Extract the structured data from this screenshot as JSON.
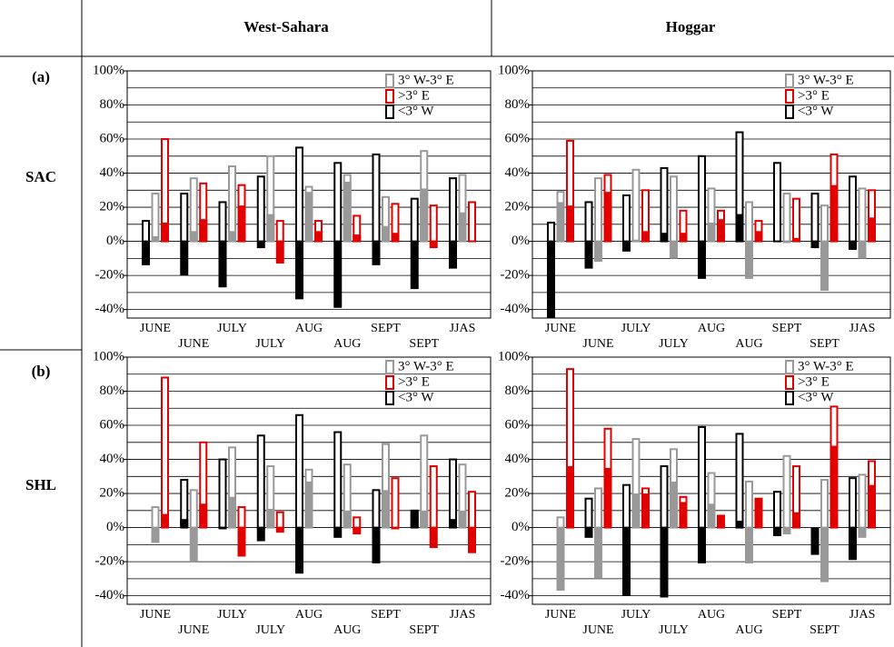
{
  "table": {
    "columns": [
      "West-Sahara",
      "Hoggar"
    ],
    "rows": [
      {
        "tag": "(a)",
        "label": "SAC"
      },
      {
        "tag": "(b)",
        "label": "SHL"
      }
    ]
  },
  "chart_data": [
    {
      "type": "bar",
      "categories": [
        "JUNE",
        "JUNE",
        "JULY",
        "JULY",
        "AUG",
        "AUG",
        "SEPT",
        "SEPT",
        "JJAS"
      ],
      "series": [
        {
          "name": "<3° W",
          "color": "#000000",
          "values": [
            12,
            28,
            23,
            38,
            55,
            46,
            51,
            25,
            37
          ],
          "filled_values": [
            -14,
            -20,
            -27,
            -4,
            -34,
            -39,
            -14,
            -28,
            -16
          ]
        },
        {
          "name": "3° W-3° E",
          "color": "#999999",
          "values": [
            28,
            37,
            44,
            50,
            32,
            39,
            26,
            53,
            39
          ],
          "filled_values": [
            3,
            6,
            6,
            16,
            29,
            35,
            9,
            31,
            17
          ]
        },
        {
          "name": ">3° E",
          "color": "#e00000",
          "values": [
            60,
            34,
            33,
            12,
            12,
            15,
            22,
            21,
            23
          ],
          "filled_values": [
            11,
            13,
            21,
            -13,
            6,
            4,
            5,
            -4,
            0
          ]
        }
      ],
      "ylim": [
        -45,
        100
      ],
      "yticks": [
        {
          "value": -40,
          "label": "-40%"
        },
        {
          "value": -20,
          "label": "-20%"
        },
        {
          "value": 0,
          "label": "0%"
        },
        {
          "value": 20,
          "label": "20%"
        },
        {
          "value": 40,
          "label": "40%"
        },
        {
          "value": 60,
          "label": "60%"
        },
        {
          "value": 80,
          "label": "80%"
        },
        {
          "value": 100,
          "label": "100%"
        }
      ],
      "minor_yticks": [
        -40,
        -30,
        -20,
        -10,
        0,
        10,
        20,
        30,
        40,
        50,
        60,
        70,
        80,
        90
      ],
      "grid": true,
      "legend": "upper right"
    },
    {
      "type": "bar",
      "categories": [
        "JUNE",
        "JUNE",
        "JULY",
        "JULY",
        "AUG",
        "AUG",
        "SEPT",
        "SEPT",
        "JJAS"
      ],
      "series": [
        {
          "name": "<3° W",
          "color": "#000000",
          "values": [
            11,
            23,
            27,
            43,
            50,
            64,
            46,
            28,
            38
          ],
          "filled_values": [
            -45,
            -16,
            -6,
            5,
            -22,
            16,
            0,
            -4,
            -5
          ]
        },
        {
          "name": "3° W-3° E",
          "color": "#999999",
          "values": [
            29,
            37,
            42,
            38,
            31,
            23,
            28,
            21,
            31
          ],
          "filled_values": [
            23,
            -12,
            1,
            -10,
            11,
            -22,
            -1,
            -29,
            -10
          ]
        },
        {
          "name": ">3° E",
          "color": "#e00000",
          "values": [
            59,
            39,
            30,
            18,
            18,
            12,
            25,
            51,
            30
          ],
          "filled_values": [
            21,
            29,
            6,
            5,
            13,
            6,
            2,
            33,
            14
          ]
        }
      ],
      "ylim": [
        -45,
        100
      ],
      "yticks": [
        {
          "value": -40,
          "label": "-40%"
        },
        {
          "value": -20,
          "label": "-20%"
        },
        {
          "value": 0,
          "label": "0%"
        },
        {
          "value": 20,
          "label": "20%"
        },
        {
          "value": 40,
          "label": "40%"
        },
        {
          "value": 60,
          "label": "60%"
        },
        {
          "value": 80,
          "label": "80%"
        },
        {
          "value": 100,
          "label": "100%"
        }
      ],
      "minor_yticks": [
        -40,
        -30,
        -20,
        -10,
        0,
        10,
        20,
        30,
        40,
        50,
        60,
        70,
        80,
        90
      ],
      "grid": true,
      "legend": "upper right"
    },
    {
      "type": "bar",
      "categories": [
        "JUNE",
        "JUNE",
        "JULY",
        "JULY",
        "AUG",
        "AUG",
        "SEPT",
        "SEPT",
        "JJAS"
      ],
      "series": [
        {
          "name": "<3° W",
          "color": "#000000",
          "values": [
            0,
            28,
            40,
            54,
            66,
            56,
            22,
            10,
            40
          ],
          "filled_values": [
            0,
            5,
            -1,
            -8,
            -27,
            -6,
            -21,
            10,
            5
          ]
        },
        {
          "name": "3° W-3° E",
          "color": "#999999",
          "values": [
            12,
            22,
            47,
            36,
            34,
            37,
            49,
            54,
            37
          ],
          "filled_values": [
            -9,
            -20,
            18,
            11,
            27,
            10,
            22,
            10,
            10
          ]
        },
        {
          "name": ">3° E",
          "color": "#e00000",
          "values": [
            88,
            50,
            12,
            9,
            0,
            6,
            29,
            36,
            21
          ],
          "filled_values": [
            8,
            14,
            -17,
            -3,
            0,
            -4,
            -1,
            -12,
            -15
          ]
        }
      ],
      "ylim": [
        -45,
        100
      ],
      "yticks": [
        {
          "value": -40,
          "label": "-40%"
        },
        {
          "value": -20,
          "label": "-20%"
        },
        {
          "value": 0,
          "label": "0%"
        },
        {
          "value": 20,
          "label": "20%"
        },
        {
          "value": 40,
          "label": "40%"
        },
        {
          "value": 60,
          "label": "60%"
        },
        {
          "value": 80,
          "label": "80%"
        },
        {
          "value": 100,
          "label": "100%"
        }
      ],
      "minor_yticks": [
        -40,
        -30,
        -20,
        -10,
        0,
        10,
        20,
        30,
        40,
        50,
        60,
        70,
        80,
        90
      ],
      "grid": true,
      "legend": "upper right"
    },
    {
      "type": "bar",
      "categories": [
        "JUNE",
        "JUNE",
        "JULY",
        "JULY",
        "AUG",
        "AUG",
        "SEPT",
        "SEPT",
        "JJAS"
      ],
      "series": [
        {
          "name": "<3° W",
          "color": "#000000",
          "values": [
            0,
            17,
            25,
            36,
            59,
            55,
            21,
            0,
            29
          ],
          "filled_values": [
            0,
            -6,
            -40,
            -41,
            -21,
            4,
            -5,
            -16,
            -19
          ]
        },
        {
          "name": "3° W-3° E",
          "color": "#999999",
          "values": [
            6,
            23,
            52,
            46,
            32,
            27,
            42,
            28,
            31
          ],
          "filled_values": [
            -37,
            -30,
            20,
            27,
            14,
            -21,
            -4,
            -32,
            -6
          ]
        },
        {
          "name": ">3° E",
          "color": "#e00000",
          "values": [
            93,
            58,
            23,
            18,
            7,
            17,
            36,
            71,
            39
          ],
          "filled_values": [
            36,
            35,
            20,
            15,
            7,
            17,
            9,
            48,
            25
          ]
        }
      ],
      "ylim": [
        -45,
        100
      ],
      "yticks": [
        {
          "value": -40,
          "label": "-40%"
        },
        {
          "value": -20,
          "label": "-20%"
        },
        {
          "value": 0,
          "label": "0%"
        },
        {
          "value": 20,
          "label": "20%"
        },
        {
          "value": 40,
          "label": "40%"
        },
        {
          "value": 60,
          "label": "60%"
        },
        {
          "value": 80,
          "label": "80%"
        },
        {
          "value": 100,
          "label": "100%"
        }
      ],
      "minor_yticks": [
        -40,
        -30,
        -20,
        -10,
        0,
        10,
        20,
        30,
        40,
        50,
        60,
        70,
        80,
        90
      ],
      "grid": true,
      "legend": "upper right"
    }
  ]
}
